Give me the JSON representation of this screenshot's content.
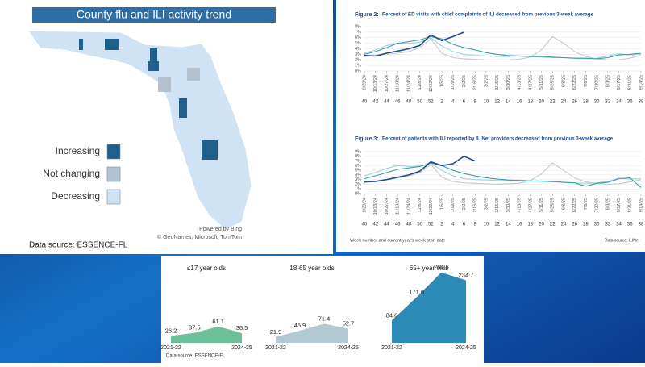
{
  "map": {
    "title": "County flu and ILI activity trend",
    "legend": [
      {
        "label": "Increasing",
        "color": "#1f5f8b"
      },
      {
        "label": "Not changing",
        "color": "#b4c2cf"
      },
      {
        "label": "Decreasing",
        "color": "#cfe3f5"
      }
    ],
    "credit": [
      "Powered by Bing",
      "© GeoNames, Microsoft, TomTom"
    ],
    "source": "Data source: ESSENCE-FL"
  },
  "chart_data": [
    {
      "type": "line",
      "label": "Figure 2:",
      "title": "Percent of ED visits with chief complaints of ILI decreased from previous 3-week average",
      "categories": [
        "9/29/24",
        "10/13/24",
        "10/27/24",
        "11/10/24",
        "11/24/24",
        "12/8/24",
        "12/22/24",
        "1/5/25",
        "1/19/25",
        "2/2/25",
        "2/16/25",
        "3/2/25",
        "3/16/25",
        "3/30/25",
        "4/13/25",
        "4/27/25",
        "5/11/25",
        "5/25/25",
        "6/8/25",
        "6/22/25",
        "7/6/25",
        "7/20/25",
        "8/3/25",
        "8/17/25",
        "8/31/25",
        "9/14/25"
      ],
      "weeks": [
        40,
        42,
        44,
        46,
        48,
        50,
        52,
        2,
        4,
        6,
        8,
        10,
        12,
        14,
        16,
        18,
        20,
        22,
        24,
        26,
        28,
        30,
        32,
        34,
        36,
        38
      ],
      "ylim": [
        0,
        8
      ],
      "yticks": [
        {
          "value": 0,
          "label": "0%"
        },
        {
          "value": 1,
          "label": "1%"
        },
        {
          "value": 2,
          "label": "2%"
        },
        {
          "value": 3,
          "label": "3%"
        },
        {
          "value": 4,
          "label": "4%"
        },
        {
          "value": 5,
          "label": "5%"
        },
        {
          "value": 6,
          "label": "6%"
        },
        {
          "value": 7,
          "label": "7%"
        },
        {
          "value": 8,
          "label": "8%"
        }
      ],
      "grid": true,
      "series": [
        {
          "color": "#c9c9c9",
          "values": [
            2.6,
            2.8,
            3.0,
            3.2,
            3.5,
            4.2,
            5.8,
            3.2,
            2.4,
            2.2,
            2.1,
            2.0,
            2.0,
            2.0,
            2.1,
            2.5,
            3.8,
            6.2,
            5.0,
            3.5,
            2.6,
            2.2,
            2.0,
            2.0,
            2.3,
            2.8
          ]
        },
        {
          "color": "#9fd3de",
          "values": [
            3.2,
            3.8,
            4.6,
            5.0,
            5.0,
            5.2,
            6.0,
            4.5,
            3.5,
            3.0,
            2.8,
            2.7,
            2.6,
            2.6,
            2.7,
            2.6,
            2.5,
            2.4,
            2.4,
            2.3,
            2.2,
            2.3,
            2.7,
            3.1,
            2.9,
            3.0
          ]
        },
        {
          "color": "#3a9cab",
          "values": [
            3.0,
            3.5,
            4.2,
            5.0,
            5.3,
            5.6,
            6.2,
            5.8,
            4.8,
            4.2,
            3.8,
            3.3,
            3.0,
            2.8,
            2.7,
            2.6,
            2.6,
            2.5,
            2.4,
            2.3,
            2.3,
            2.2,
            2.4,
            2.9,
            3.0,
            3.2
          ]
        },
        {
          "color": "#1d4e89",
          "values": [
            2.8,
            2.7,
            3.2,
            3.6,
            4.0,
            4.6,
            6.5,
            5.5,
            6.2,
            7.0,
            null,
            null,
            null,
            null,
            null,
            null,
            null,
            null,
            null,
            null,
            null,
            null,
            null,
            null,
            null,
            null
          ]
        }
      ]
    },
    {
      "type": "line",
      "label": "Figure 3:",
      "title": "Percent of patients with ILI reported by ILINet providers decreased from previous 3-week average",
      "categories": [
        "9/29/24",
        "10/13/24",
        "10/27/24",
        "11/10/24",
        "11/24/24",
        "12/8/24",
        "12/22/24",
        "1/5/25",
        "1/19/25",
        "2/2/25",
        "2/16/25",
        "3/2/25",
        "3/16/25",
        "3/30/25",
        "4/13/25",
        "4/27/25",
        "5/11/25",
        "5/25/25",
        "6/8/25",
        "6/22/25",
        "7/6/25",
        "7/20/25",
        "8/3/25",
        "8/17/25",
        "8/31/25",
        "9/14/25"
      ],
      "weeks": [
        40,
        42,
        44,
        46,
        48,
        50,
        52,
        2,
        4,
        6,
        8,
        10,
        12,
        14,
        16,
        18,
        20,
        22,
        24,
        26,
        28,
        30,
        32,
        34,
        36,
        38
      ],
      "ylim": [
        0,
        9
      ],
      "yticks": [
        {
          "value": 0,
          "label": "0%"
        },
        {
          "value": 1,
          "label": "1%"
        },
        {
          "value": 2,
          "label": "2%"
        },
        {
          "value": 3,
          "label": "3%"
        },
        {
          "value": 4,
          "label": "4%"
        },
        {
          "value": 5,
          "label": "5%"
        },
        {
          "value": 6,
          "label": "6%"
        },
        {
          "value": 7,
          "label": "7%"
        },
        {
          "value": 8,
          "label": "8%"
        },
        {
          "value": 9,
          "label": "9%"
        }
      ],
      "grid": true,
      "xlabel": "Week number and current year's week start date",
      "source": "Data source: ILINet",
      "series": [
        {
          "color": "#c9c9c9",
          "values": [
            2.5,
            2.7,
            3.0,
            3.4,
            3.8,
            4.5,
            6.3,
            3.5,
            2.6,
            2.3,
            2.2,
            2.1,
            2.0,
            2.1,
            2.2,
            2.8,
            4.2,
            6.6,
            5.0,
            3.4,
            2.5,
            2.2,
            2.0,
            2.1,
            2.5,
            3.0
          ]
        },
        {
          "color": "#9fd3de",
          "values": [
            3.8,
            4.5,
            5.4,
            6.0,
            5.8,
            5.9,
            6.5,
            5.0,
            3.8,
            3.2,
            3.0,
            2.9,
            2.8,
            2.8,
            2.9,
            2.7,
            2.6,
            2.5,
            2.4,
            2.3,
            2.2,
            2.3,
            2.6,
            3.3,
            3.1,
            3.2
          ]
        },
        {
          "color": "#3a9cab",
          "values": [
            3.2,
            3.8,
            4.5,
            5.2,
            5.5,
            5.8,
            6.6,
            6.0,
            5.0,
            4.3,
            3.8,
            3.4,
            3.1,
            2.9,
            2.8,
            2.7,
            2.7,
            2.6,
            2.4,
            2.3,
            1.6,
            2.2,
            2.4,
            3.2,
            3.4,
            1.3
          ]
        },
        {
          "color": "#1d4e89",
          "values": [
            2.5,
            2.6,
            3.0,
            3.5,
            4.0,
            4.8,
            6.8,
            6.0,
            6.4,
            8.0,
            7.0,
            null,
            null,
            null,
            null,
            null,
            null,
            null,
            null,
            null,
            null,
            null,
            null,
            null,
            null,
            null
          ]
        }
      ]
    },
    {
      "type": "area",
      "title": "≤17 year olds",
      "categories": [
        "2021-22",
        null,
        null,
        "2024-25"
      ],
      "values": [
        26.2,
        37.5,
        61.1,
        36.5
      ],
      "value_labels": [
        "26.2",
        "37.5",
        "61.1",
        "36.5"
      ],
      "color": "#6dbf9a"
    },
    {
      "type": "area",
      "title": "18-65 year olds",
      "categories": [
        "2021-22",
        null,
        null,
        "2024-25"
      ],
      "values": [
        21.9,
        45.9,
        71.4,
        52.7
      ],
      "value_labels": [
        "21.9",
        "45.9",
        "71.4",
        "52.7"
      ],
      "color": "#b3c9d1"
    },
    {
      "type": "area",
      "title": "65+ year olds",
      "categories": [
        "2021-22",
        null,
        null,
        "2024-25"
      ],
      "values": [
        84.0,
        171.6,
        264.6,
        234.7
      ],
      "value_labels": [
        "84.0",
        "171.6",
        "264.6",
        "234.7"
      ],
      "color": "#2c8ab6"
    }
  ],
  "footer": {
    "source": "Data source: ESSENCE-FL"
  }
}
